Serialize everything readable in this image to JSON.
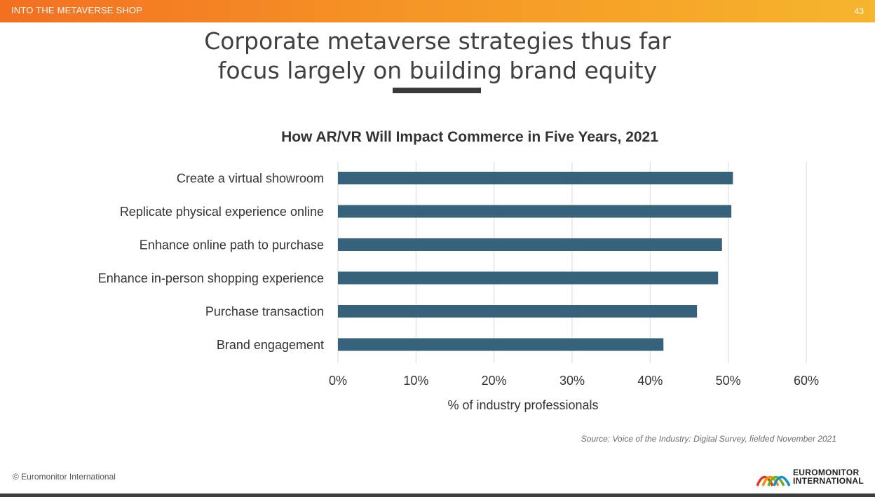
{
  "header": {
    "section": "INTO THE METAVERSE SHOP",
    "page_number": "43"
  },
  "slide": {
    "title_line1": "Corporate metaverse strategies thus far",
    "title_line2": "focus largely on building brand equity"
  },
  "colors": {
    "accent_orange": "#f36f21",
    "accent_yellow": "#f6b52c",
    "bar": "#36627c",
    "title_underline": "#3a3a3a"
  },
  "chart_data": {
    "type": "bar",
    "orientation": "horizontal",
    "title": "How AR/VR Will Impact Commerce in Five Years, 2021",
    "xlabel": "% of industry professionals",
    "ylabel": "",
    "categories": [
      "Create a virtual showroom",
      "Replicate physical experience online",
      "Enhance online path to purchase",
      "Enhance in-person shopping experience",
      "Purchase transaction",
      "Brand engagement"
    ],
    "values": [
      50.6,
      50.4,
      49.2,
      48.7,
      46.0,
      41.7
    ],
    "unit": "%",
    "xlim": [
      0,
      60
    ],
    "ticks": [
      0,
      10,
      20,
      30,
      40,
      50,
      60
    ],
    "tick_labels": [
      "0%",
      "10%",
      "20%",
      "30%",
      "40%",
      "50%",
      "60%"
    ],
    "grid": "vertical",
    "legend": "none"
  },
  "source": "Source: Voice of the Industry: Digital Survey, fielded November 2021",
  "footer": {
    "copyright": "© Euromonitor International",
    "logo_line1": "EUROMONITOR",
    "logo_line2": "INTERNATIONAL"
  }
}
